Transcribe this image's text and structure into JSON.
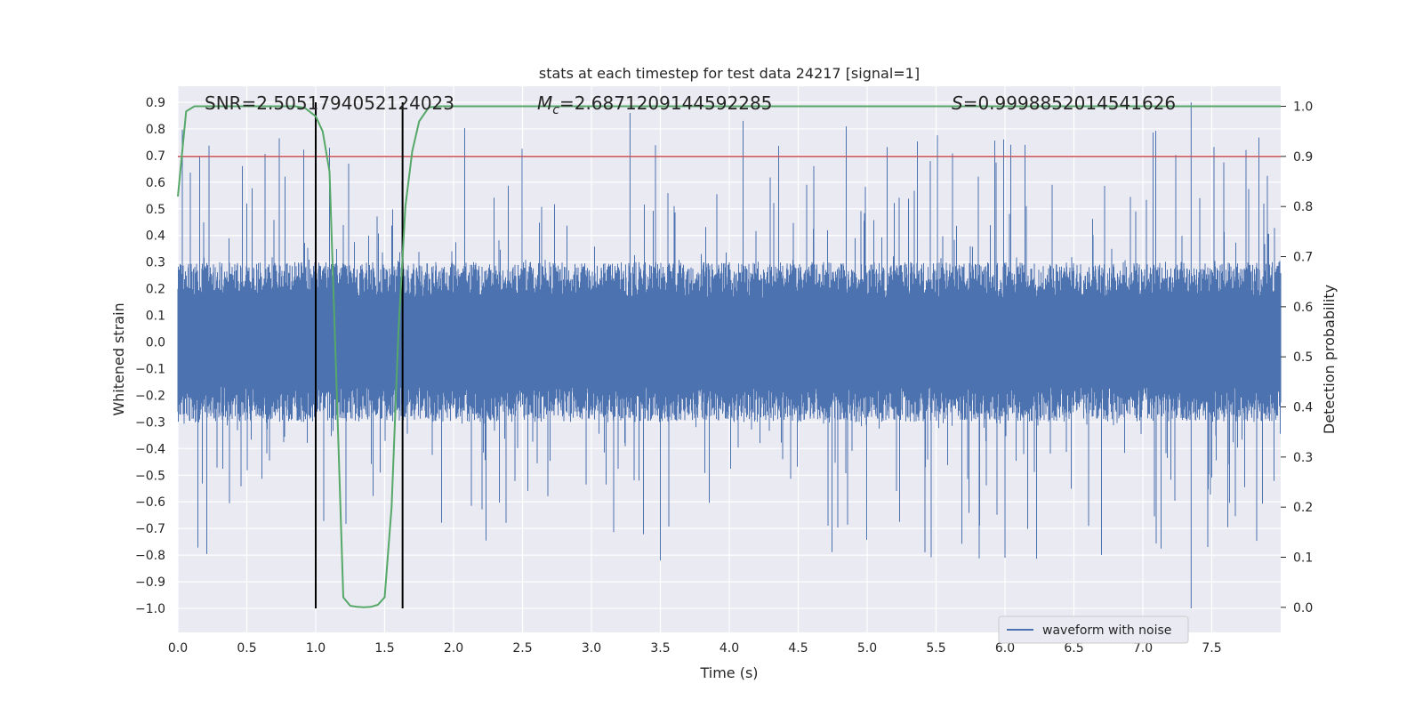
{
  "colors": {
    "plot_bg": "#EAEAF2",
    "grid": "#FFFFFF",
    "waveform": "#4C72B0",
    "probability": "#55A868",
    "threshold": "#C44E52",
    "markers": "#000000"
  },
  "chart_data": {
    "type": "line",
    "title": "stats at each timestep for test data 24217 [signal=1]",
    "xlabel": "Time (s)",
    "ylabel": "Whitened strain",
    "y2label": "Detection probability",
    "xlim": [
      0,
      8
    ],
    "ylim": [
      -1.09,
      0.96
    ],
    "y2lim": [
      -0.05,
      1.04
    ],
    "x_ticks": [
      "0.0",
      "0.5",
      "1.0",
      "1.5",
      "2.0",
      "2.5",
      "3.0",
      "3.5",
      "4.0",
      "4.5",
      "5.0",
      "5.5",
      "6.0",
      "6.5",
      "7.0",
      "7.5"
    ],
    "y_ticks": [
      "0.9",
      "0.8",
      "0.7",
      "0.6",
      "0.5",
      "0.4",
      "0.3",
      "0.2",
      "0.1",
      "0.0",
      "−0.1",
      "−0.2",
      "−0.3",
      "−0.4",
      "−0.5",
      "−0.6",
      "−0.7",
      "−0.8",
      "−0.9",
      "−1.0"
    ],
    "y2_ticks": [
      "1.0",
      "0.9",
      "0.8",
      "0.7",
      "0.6",
      "0.5",
      "0.4",
      "0.3",
      "0.2",
      "0.1",
      "0.0"
    ],
    "annotations": {
      "snr_label": "SNR=2.5051794052124023",
      "mc_prefix": "M",
      "mc_sub": "c",
      "mc_value": "=2.6871209144592285",
      "s_prefix": "S",
      "s_value": "=0.9998852014541626"
    },
    "legend": {
      "label": "waveform with noise",
      "position": "lower-right"
    },
    "series": [
      {
        "name": "waveform with noise",
        "axis": "left",
        "style": "noise-band",
        "x_range": [
          0,
          8
        ],
        "typical_amplitude": 0.3,
        "peak_max": 0.9,
        "peak_min": -1.0
      },
      {
        "name": "",
        "axis": "right",
        "style": "line",
        "x": [
          0.0,
          0.06,
          0.12,
          0.2,
          0.3,
          0.5,
          0.7,
          0.85,
          0.92,
          1.0,
          1.05,
          1.1,
          1.15,
          1.2,
          1.25,
          1.3,
          1.35,
          1.4,
          1.45,
          1.5,
          1.55,
          1.6,
          1.65,
          1.7,
          1.75,
          1.82,
          1.9,
          2.0,
          3.0,
          4.0,
          5.0,
          6.0,
          7.0,
          8.0
        ],
        "y": [
          0.82,
          0.99,
          1.0,
          1.0,
          1.0,
          1.0,
          1.0,
          1.0,
          0.997,
          0.98,
          0.95,
          0.87,
          0.45,
          0.02,
          0.003,
          0.001,
          0.0,
          0.001,
          0.005,
          0.02,
          0.2,
          0.55,
          0.8,
          0.91,
          0.97,
          0.998,
          1.0,
          1.0,
          1.0,
          1.0,
          1.0,
          1.0,
          1.0,
          1.0
        ]
      }
    ],
    "threshold": {
      "axis": "right",
      "value": 0.9
    },
    "vertical_markers": {
      "x": [
        1.0,
        1.63
      ],
      "y_from": -1.0,
      "y_to": 0.9
    }
  }
}
